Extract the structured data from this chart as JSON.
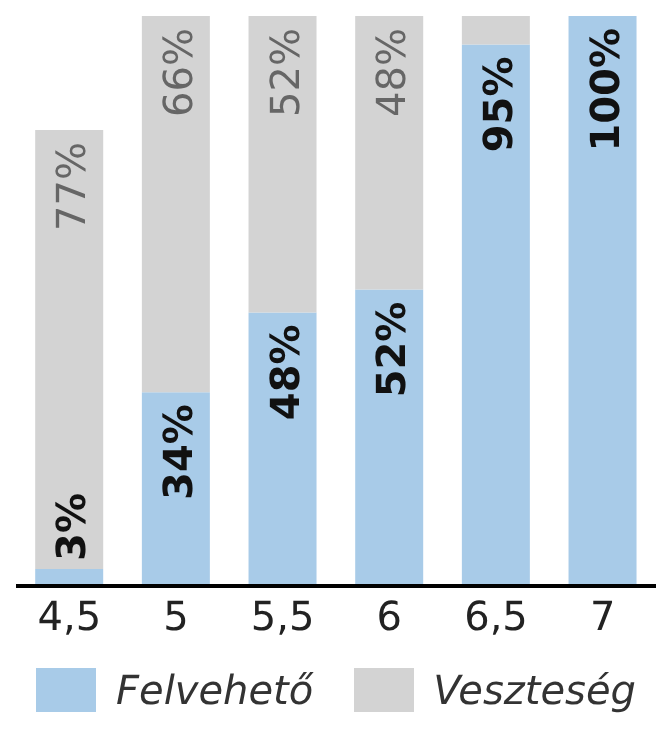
{
  "chart_data": {
    "type": "bar",
    "stacked": true,
    "categories": [
      "4,5",
      "5",
      "5,5",
      "6",
      "6,5",
      "7"
    ],
    "series": [
      {
        "name": "Felvehető",
        "color": "#a8cbe8",
        "values": [
          3,
          34,
          48,
          52,
          95,
          100
        ],
        "value_labels": [
          "3%",
          "34%",
          "48%",
          "52%",
          "95%",
          "100%"
        ]
      },
      {
        "name": "Veszteség",
        "color": "#d3d3d3",
        "values": [
          77,
          66,
          52,
          48,
          5,
          0
        ],
        "value_labels": [
          "77%",
          "66%",
          "52%",
          "48%",
          null,
          null
        ]
      }
    ],
    "legend": "bottom",
    "grid": false
  }
}
